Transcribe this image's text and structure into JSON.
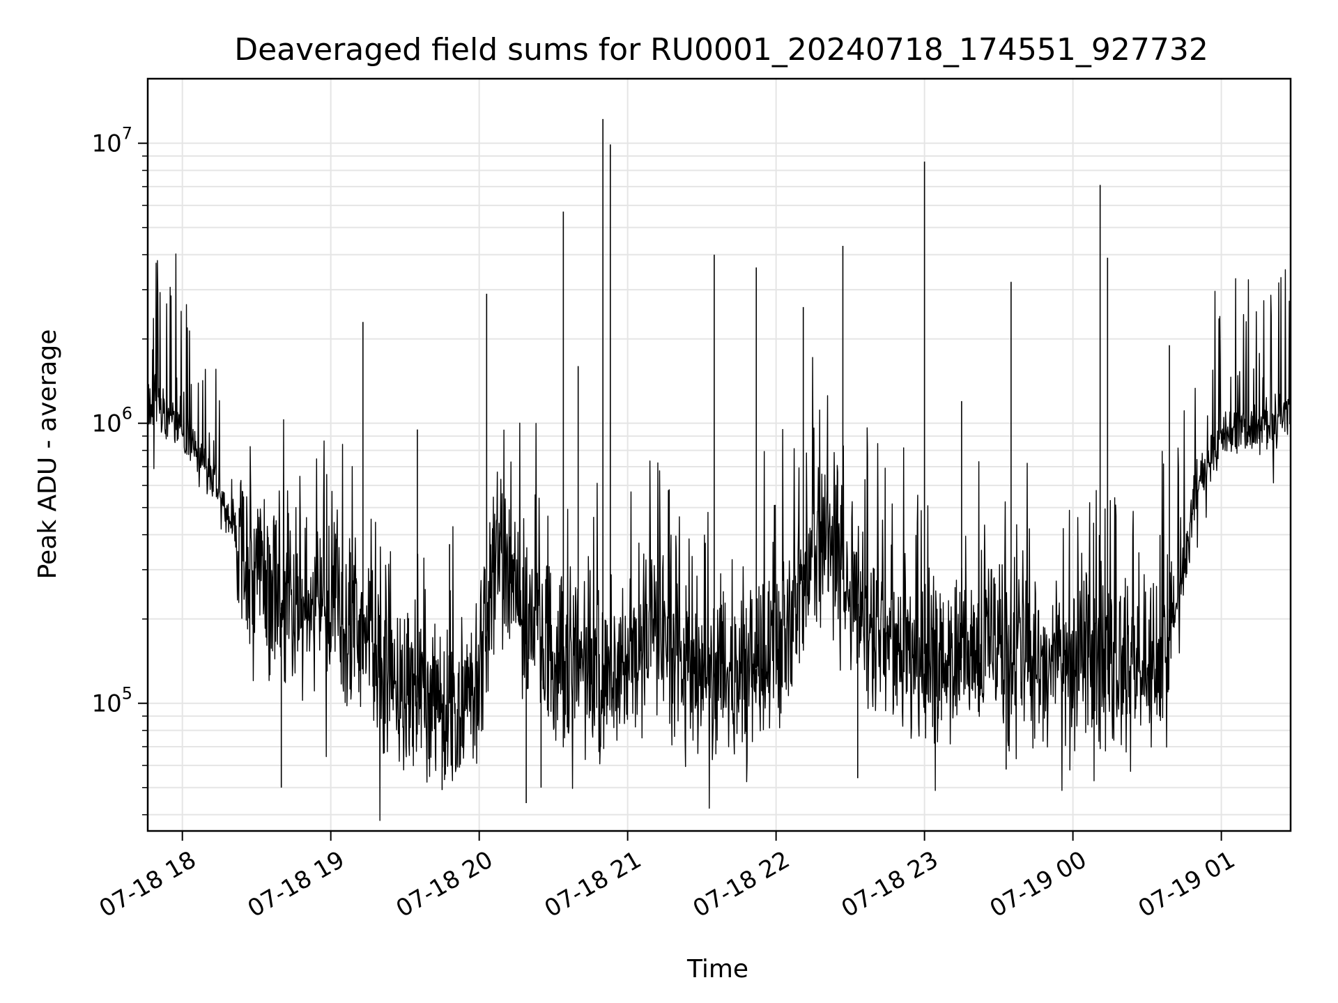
{
  "chart_data": {
    "type": "line",
    "title": "Deaveraged field sums for RU0001_20240718_174551_927732",
    "xlabel": "Time",
    "ylabel": "Peak ADU - average",
    "yscale": "log",
    "xlim": [
      "2024-07-18 17:46",
      "2024-07-19 01:28"
    ],
    "ylim": [
      35000,
      17000000
    ],
    "x_ticks": [
      {
        "value": "2024-07-18 18:00",
        "label": "07-18 18"
      },
      {
        "value": "2024-07-18 19:00",
        "label": "07-18 19"
      },
      {
        "value": "2024-07-18 20:00",
        "label": "07-18 20"
      },
      {
        "value": "2024-07-18 21:00",
        "label": "07-18 21"
      },
      {
        "value": "2024-07-18 22:00",
        "label": "07-18 22"
      },
      {
        "value": "2024-07-18 23:00",
        "label": "07-18 23"
      },
      {
        "value": "2024-07-19 00:00",
        "label": "07-19 00"
      },
      {
        "value": "2024-07-19 01:00",
        "label": "07-19 01"
      }
    ],
    "y_ticks": [
      {
        "value": 100000,
        "base": "10",
        "exp": "5"
      },
      {
        "value": 1000000,
        "base": "10",
        "exp": "6"
      },
      {
        "value": 10000000,
        "base": "10",
        "exp": "7"
      }
    ],
    "grid": true,
    "line_color": "#000000",
    "grid_color": "#e5e5e5",
    "series": [
      {
        "x": [
          "2024-07-18 17:46",
          "2024-07-18 17:50",
          "2024-07-18 17:55",
          "2024-07-18 18:00",
          "2024-07-18 18:05",
          "2024-07-18 18:10",
          "2024-07-18 18:15",
          "2024-07-18 18:20",
          "2024-07-18 18:25",
          "2024-07-18 18:30",
          "2024-07-18 18:35",
          "2024-07-18 18:40",
          "2024-07-18 18:50",
          "2024-07-18 19:00",
          "2024-07-18 19:10",
          "2024-07-18 19:15",
          "2024-07-18 19:20",
          "2024-07-18 19:30",
          "2024-07-18 19:40",
          "2024-07-18 19:50",
          "2024-07-18 20:00",
          "2024-07-18 20:05",
          "2024-07-18 20:10",
          "2024-07-18 20:20",
          "2024-07-18 20:30",
          "2024-07-18 20:40",
          "2024-07-18 20:50",
          "2024-07-18 21:00",
          "2024-07-18 21:10",
          "2024-07-18 21:20",
          "2024-07-18 21:30",
          "2024-07-18 21:40",
          "2024-07-18 21:50",
          "2024-07-18 22:00",
          "2024-07-18 22:10",
          "2024-07-18 22:15",
          "2024-07-18 22:20",
          "2024-07-18 22:30",
          "2024-07-18 22:40",
          "2024-07-18 22:50",
          "2024-07-18 23:00",
          "2024-07-18 23:10",
          "2024-07-18 23:20",
          "2024-07-18 23:30",
          "2024-07-18 23:40",
          "2024-07-18 23:50",
          "2024-07-19 00:00",
          "2024-07-19 00:10",
          "2024-07-19 00:20",
          "2024-07-19 00:30",
          "2024-07-19 00:40",
          "2024-07-19 00:45",
          "2024-07-19 00:50",
          "2024-07-19 01:00",
          "2024-07-19 01:10",
          "2024-07-19 01:20",
          "2024-07-19 01:28"
        ],
        "y": [
          1100000,
          1200000,
          1000000,
          900000,
          800000,
          700000,
          550000,
          450000,
          350000,
          300000,
          250000,
          220000,
          200000,
          220000,
          200000,
          180000,
          130000,
          110000,
          100000,
          100000,
          110000,
          250000,
          300000,
          200000,
          150000,
          130000,
          120000,
          140000,
          180000,
          150000,
          130000,
          120000,
          130000,
          150000,
          250000,
          400000,
          350000,
          250000,
          180000,
          160000,
          150000,
          140000,
          150000,
          150000,
          150000,
          140000,
          140000,
          140000,
          120000,
          120000,
          200000,
          300000,
          600000,
          900000,
          950000,
          1000000,
          1100000
        ]
      }
    ],
    "annotations": [
      {
        "x": "2024-07-18 20:50",
        "y": 12200000
      },
      {
        "x": "2024-07-18 20:53",
        "y": 9900000
      },
      {
        "x": "2024-07-18 23:00",
        "y": 8600000
      },
      {
        "x": "2024-07-19 00:11",
        "y": 7100000
      },
      {
        "x": "2024-07-18 20:34",
        "y": 5700000
      },
      {
        "x": "2024-07-18 22:27",
        "y": 4300000
      },
      {
        "x": "2024-07-18 21:35",
        "y": 4000000
      },
      {
        "x": "2024-07-19 00:14",
        "y": 3900000
      },
      {
        "x": "2024-07-18 21:52",
        "y": 3600000
      },
      {
        "x": "2024-07-18 23:35",
        "y": 3200000
      },
      {
        "x": "2024-07-18 20:03",
        "y": 2900000
      },
      {
        "x": "2024-07-18 22:11",
        "y": 2600000
      },
      {
        "x": "2024-07-18 19:13",
        "y": 2300000
      },
      {
        "x": "2024-07-19 00:39",
        "y": 1900000
      },
      {
        "x": "2024-07-18 20:40",
        "y": 1600000
      },
      {
        "x": "2024-07-18 23:15",
        "y": 1200000
      },
      {
        "x": "2024-07-18 19:35",
        "y": 950000
      },
      {
        "x": "2024-07-18 19:48",
        "y": 370000
      },
      {
        "x": "2024-07-18 18:40",
        "y": 50000
      },
      {
        "x": "2024-07-18 20:19",
        "y": 44000
      },
      {
        "x": "2024-07-18 20:25",
        "y": 50000
      },
      {
        "x": "2024-07-18 19:45",
        "y": 49000
      },
      {
        "x": "2024-07-18 22:33",
        "y": 54000
      },
      {
        "x": "2024-07-18 23:33",
        "y": 58000
      }
    ]
  }
}
